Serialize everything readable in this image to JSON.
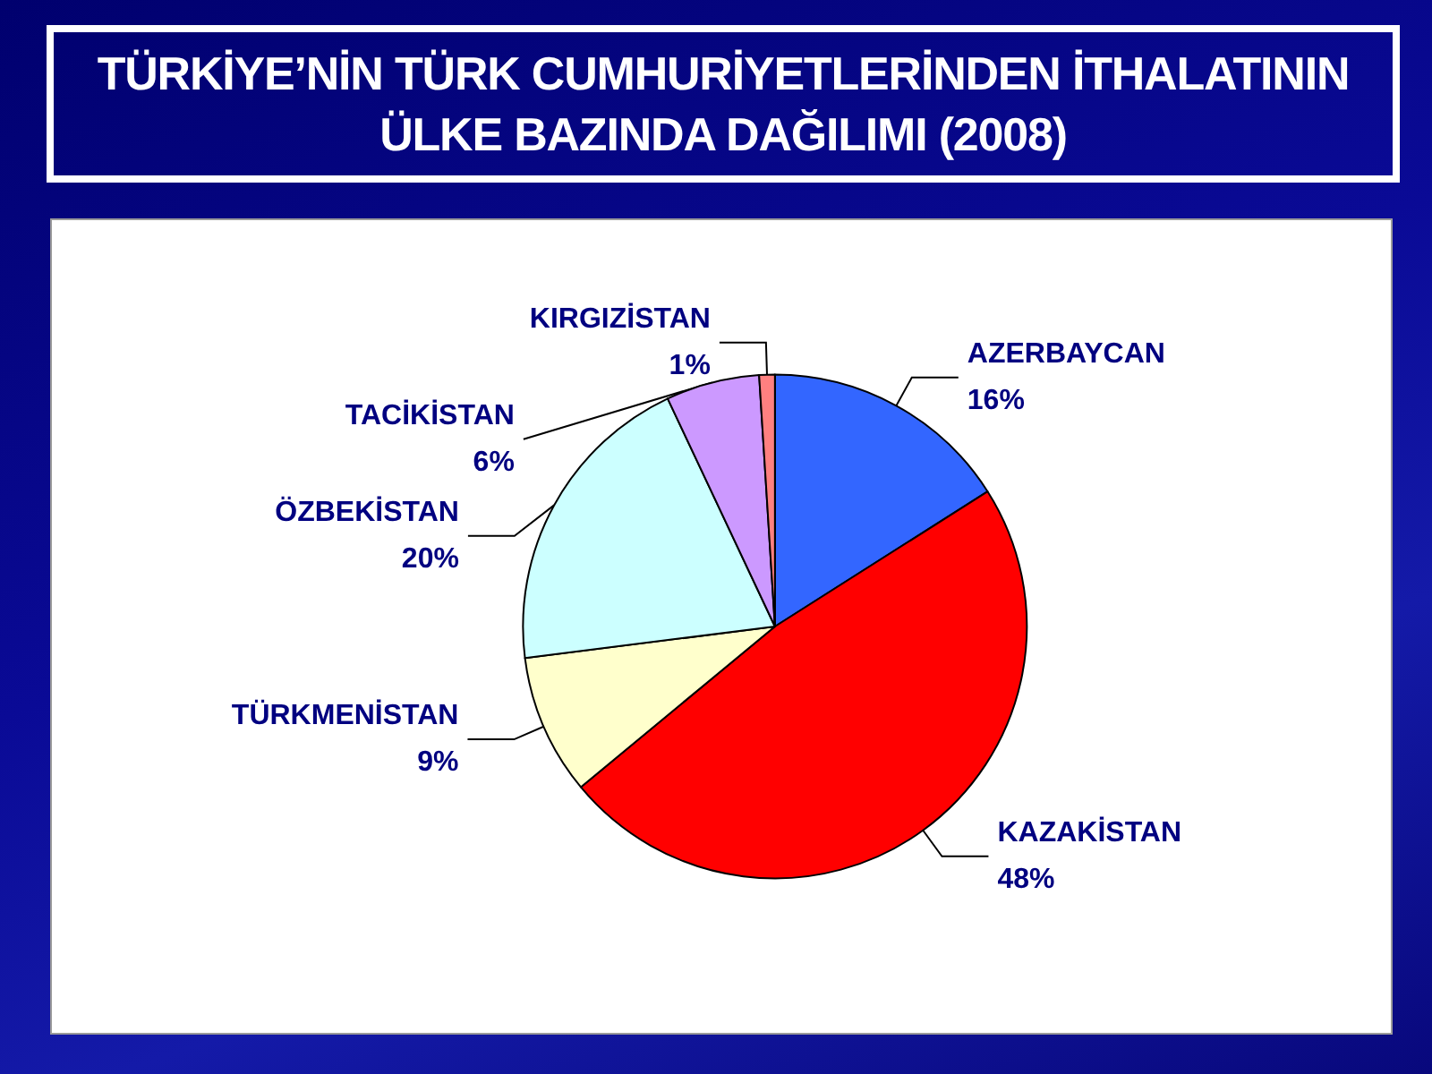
{
  "chart_data": {
    "type": "pie",
    "title": "TÜRKİYE’NİN TÜRK CUMHURİYETLERİNDEN İTHALATININ ÜLKE BAZINDA DAĞILIMI (2008)",
    "categories": [
      "AZERBAYCAN",
      "KAZAKİSTAN",
      "TÜRKMENİSTAN",
      "ÖZBEKİSTAN",
      "TACİKİSTAN",
      "KIRGIZİSTAN"
    ],
    "values": [
      16,
      48,
      9,
      20,
      6,
      1
    ],
    "value_labels": [
      "16%",
      "48%",
      "9%",
      "20%",
      "6%",
      "1%"
    ],
    "colors": [
      "#3366ff",
      "#ff0000",
      "#ffffcc",
      "#ccffff",
      "#cc99ff",
      "#ff8080"
    ]
  }
}
